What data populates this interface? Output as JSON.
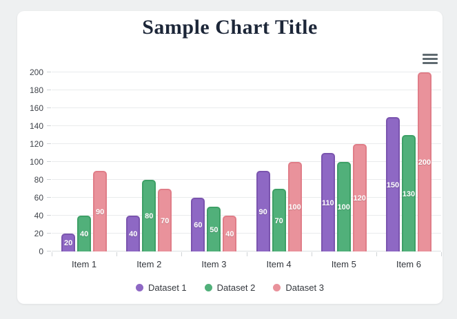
{
  "page": {
    "background_color": "#eef0f1",
    "card_color": "#ffffff"
  },
  "header": {
    "title": "Sample Chart Title",
    "title_color": "#1c2638",
    "menu_icon": "hamburger-icon"
  },
  "chart_data": {
    "type": "bar",
    "title": "Sample Chart Title",
    "categories": [
      "Item 1",
      "Item 2",
      "Item 3",
      "Item 4",
      "Item 5",
      "Item 6"
    ],
    "series": [
      {
        "name": "Dataset 1",
        "values": [
          20,
          40,
          60,
          90,
          110,
          150
        ],
        "color": "#8e68c4",
        "border_color": "#7a54ae"
      },
      {
        "name": "Dataset 2",
        "values": [
          40,
          80,
          50,
          70,
          100,
          130
        ],
        "color": "#51b07a",
        "border_color": "#3da066"
      },
      {
        "name": "Dataset 3",
        "values": [
          90,
          70,
          40,
          100,
          120,
          200
        ],
        "color": "#e9929b",
        "border_color": "#e07d88"
      }
    ],
    "xlabel": "",
    "ylabel": "",
    "ylim": [
      0,
      200
    ],
    "ytick_step": 20,
    "ytick_labels": [
      "0",
      "20",
      "40",
      "60",
      "80",
      "100",
      "120",
      "140",
      "160",
      "180",
      "200"
    ],
    "grid": true,
    "data_labels": true,
    "data_label_color": "#ffffff",
    "legend_position": "bottom"
  }
}
